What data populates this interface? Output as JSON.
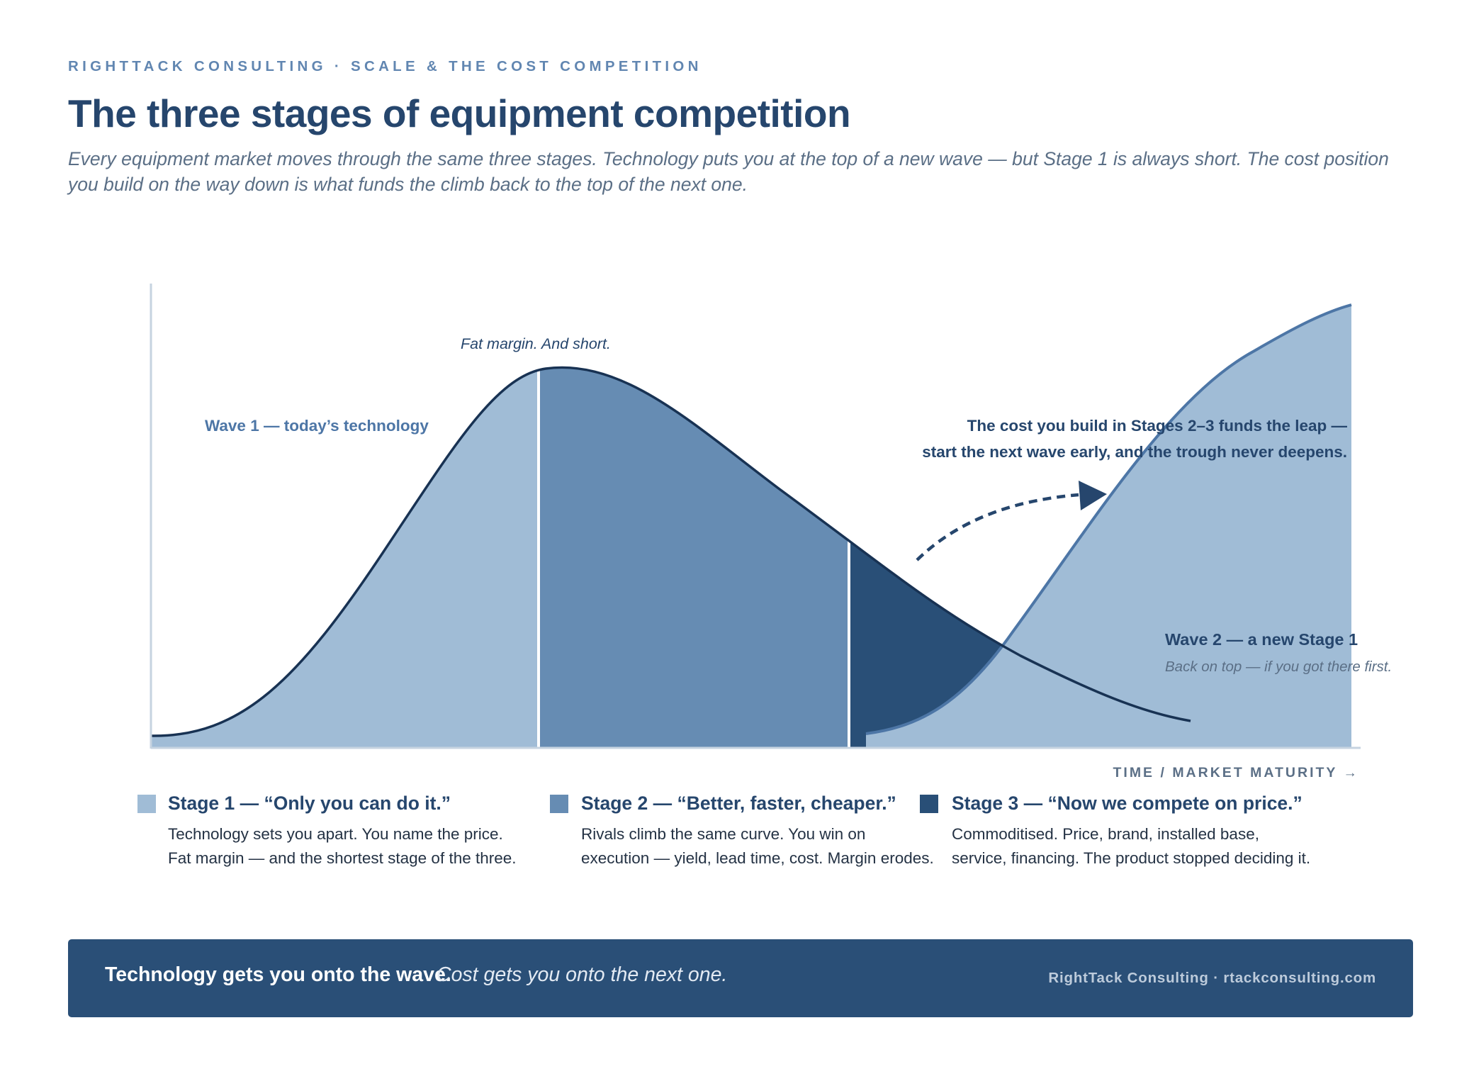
{
  "header": {
    "eyebrow": "RIGHTTACK CONSULTING · SCALE & THE COST COMPETITION",
    "title": "The three stages of equipment competition",
    "subtitle": "Every equipment market moves through the same three stages. Technology puts you at the top of a new wave — but Stage 1 is always short. The cost position you build on the way down is what funds the climb back to the top of the next one."
  },
  "diagram": {
    "peak_label": "Fat margin. And short.",
    "wave1_label": "Wave 1 — today’s technology",
    "leap_label_line1": "The cost you build in Stages 2–3 funds the leap —",
    "leap_label_line2": "start the next wave early, and the trough never deepens.",
    "wave2_label": "Wave 2 — a new Stage 1",
    "wave2_sublabel": "Back on top — if you got there first.",
    "x_axis_label": "TIME / MARKET MATURITY →",
    "colors": {
      "stage1": "#a0bcd6",
      "stage2": "#668cb3",
      "stage3": "#294f77",
      "wave2_fill": "#a0bcd6",
      "wave2_line": "#4d76a6",
      "wave1_line": "#183253"
    }
  },
  "legend": [
    {
      "title": "Stage 1 — “Only you can do it.”",
      "line1": "Technology sets you apart. You name the price.",
      "line2": "Fat margin — and the shortest stage of the three.",
      "color": "#a0bcd6"
    },
    {
      "title": "Stage 2 — “Better, faster, cheaper.”",
      "line1": "Rivals climb the same curve. You win on",
      "line2": "execution — yield, lead time, cost. Margin erodes.",
      "color": "#668cb3"
    },
    {
      "title": "Stage 3 — “Now we compete on price.”",
      "line1": "Commoditised. Price, brand, installed base,",
      "line2": "service, financing. The product stopped deciding it.",
      "color": "#294f77"
    }
  ],
  "banner": {
    "bold": "Technology gets you onto the wave.",
    "italic": "Cost gets you onto the next one.",
    "right": "RightTack Consulting  ·  rtackconsulting.com"
  }
}
